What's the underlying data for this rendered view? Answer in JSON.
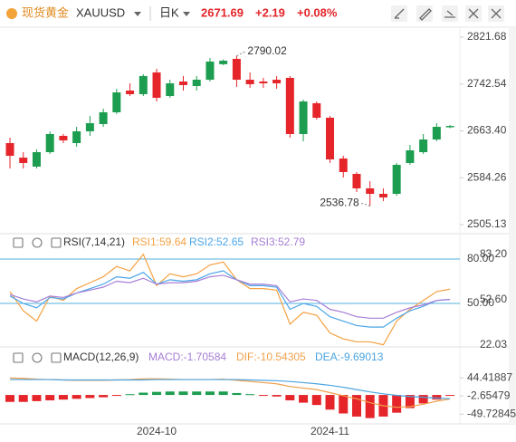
{
  "header": {
    "logo_name": "现货黄金",
    "symbol": "XAUUSD",
    "period": "日K",
    "price": "2671.69",
    "change": "+2.19",
    "change_pct": "+0.08%"
  },
  "chart_data": [
    {
      "type": "candlestick",
      "categories": [
        null,
        null,
        null,
        null,
        null,
        null,
        null,
        null,
        null,
        null,
        null,
        "2024-10",
        null,
        null,
        null,
        null,
        null,
        null,
        null,
        null,
        null,
        null,
        null,
        null,
        "2024-11",
        null,
        null,
        null,
        null,
        null,
        null,
        null,
        null,
        null
      ],
      "open": [
        2642.8,
        2618.3,
        2603.1,
        2627.5,
        2655.0,
        2642.8,
        2662.7,
        2674.9,
        2694.8,
        2731.5,
        2725.4,
        2762.1,
        2722.3,
        2746.8,
        2739.1,
        2749.8,
        2776.0,
        2785.0,
        2749.8,
        2746.8,
        2749.8,
        2752.9,
        2658.1,
        2710.1,
        2685.6,
        2616.8,
        2590.8,
        2566.4,
        2557.2,
        2557.2,
        2609.2,
        2627.5,
        2648.9,
        2669.5
      ],
      "high": [
        2652.0,
        2627.5,
        2632.1,
        2662.7,
        2658.1,
        2670.3,
        2688.7,
        2700.9,
        2734.5,
        2743.7,
        2759.0,
        2768.2,
        2749.8,
        2756.0,
        2756.0,
        2786.5,
        2784.0,
        2790.02,
        2762.1,
        2752.9,
        2756.0,
        2756.0,
        2716.2,
        2713.1,
        2688.7,
        2621.4,
        2593.9,
        2578.6,
        2566.4,
        2609.2,
        2639.7,
        2658.1,
        2676.4,
        2673.4
      ],
      "low": [
        2600.0,
        2600.0,
        2600.0,
        2624.5,
        2642.8,
        2636.7,
        2655.0,
        2670.3,
        2691.7,
        2722.3,
        2722.3,
        2713.1,
        2719.3,
        2731.5,
        2731.5,
        2746.8,
        2774.5,
        2737.6,
        2736.1,
        2736.1,
        2734.5,
        2652.0,
        2645.9,
        2682.6,
        2609.2,
        2584.7,
        2560.2,
        2536.78,
        2545.0,
        2554.1,
        2606.1,
        2624.5,
        2645.9,
        2668.0
      ],
      "close": [
        2621.4,
        2609.2,
        2627.5,
        2658.1,
        2647.4,
        2662.7,
        2676.4,
        2694.8,
        2728.4,
        2725.4,
        2756.0,
        2719.3,
        2743.7,
        2740.7,
        2749.8,
        2780.4,
        2781.9,
        2749.8,
        2742.2,
        2743.7,
        2743.7,
        2658.1,
        2713.1,
        2685.6,
        2615.3,
        2593.9,
        2566.4,
        2557.2,
        2551.1,
        2606.1,
        2630.6,
        2648.9,
        2670.3,
        2671.69
      ],
      "up_color": "#1c9d4f",
      "down_color": "#e5252a",
      "ylim": [
        2489.9,
        2838.5
      ],
      "yticks": [
        2821.68,
        2742.54,
        {
          "value": 2663.4,
          "label": "2663.40"
        },
        2584.26,
        2505.13
      ]
    },
    {
      "type": "line",
      "title": "RSI(7,14,21)",
      "series": [
        {
          "name": "RSI1:59.64",
          "color": "#f5a142",
          "values": [
            58,
            45,
            38,
            55,
            52,
            60,
            64,
            68,
            75,
            72,
            83.2,
            62,
            70,
            68,
            70,
            76,
            78,
            66,
            60,
            60,
            59,
            36,
            44,
            42,
            30,
            26,
            24,
            24,
            22.03,
            38,
            46,
            52,
            58,
            59.64
          ]
        },
        {
          "name": "RSI2:52.65",
          "color": "#4aa6e8",
          "values": [
            55,
            50,
            47,
            54,
            53,
            57,
            60,
            63,
            68,
            67,
            71,
            63,
            66,
            65,
            66,
            70,
            72,
            66,
            62,
            62,
            61,
            46,
            50,
            48,
            41,
            38,
            35,
            34,
            34,
            40,
            45,
            48,
            52,
            52.65
          ]
        },
        {
          "name": "RSI3:52.79",
          "color": "#a77ed6",
          "values": [
            56,
            53,
            51,
            55,
            54,
            57,
            59,
            61,
            65,
            64,
            67,
            63,
            64,
            64,
            65,
            68,
            69,
            66,
            63,
            63,
            62,
            51,
            53,
            52,
            46,
            44,
            41,
            40,
            40,
            44,
            47,
            49,
            52,
            52.79
          ]
        }
      ],
      "ylim": [
        21.2,
        84.9
      ],
      "yticks": [
        {
          "value": 80,
          "label": "80.00"
        },
        {
          "value": 50,
          "label": "50.00"
        }
      ],
      "grid": true,
      "grid_color": "#4fb0de",
      "markers": [
        {
          "value": 83.2,
          "label": "83.20"
        },
        {
          "value": 52.6,
          "label": "52.60"
        },
        {
          "value": 22.03,
          "label": "22.03"
        }
      ]
    },
    {
      "type": "macd",
      "title": "MACD(12,26,9)",
      "series": [
        {
          "name": "MACD:-1.70584",
          "kind": "bar",
          "color": "#a77ed6",
          "up_color": "#1c9d4f",
          "down_color": "#e5252a",
          "values": [
            -18,
            -18,
            -16,
            -14,
            -12,
            -10,
            -8,
            -6,
            -2,
            2,
            6,
            8,
            9,
            9,
            9,
            9,
            9,
            5,
            2,
            -2,
            -4,
            -14,
            -20,
            -26,
            -38,
            -48,
            -56,
            -60,
            -56,
            -46,
            -34,
            -22,
            -12,
            -1.70584
          ]
        },
        {
          "name": "DIF:-10.54305",
          "kind": "line",
          "color": "#f0a04b",
          "values": [
            44,
            43,
            41,
            40,
            39,
            38,
            38,
            38,
            39,
            40,
            42,
            42,
            41,
            40,
            40,
            40,
            41,
            38,
            35,
            32,
            29,
            22,
            18,
            14,
            6,
            -2,
            -10,
            -20,
            -28,
            -32,
            -30,
            -24,
            -16,
            -10.54305
          ]
        },
        {
          "name": "DEA:-9.69013",
          "kind": "line",
          "color": "#4ba3e0",
          "values": [
            40,
            40,
            40,
            40,
            39,
            39,
            39,
            39,
            39,
            39,
            39,
            40,
            40,
            40,
            40,
            40,
            40,
            40,
            39,
            38,
            37,
            35,
            32,
            29,
            25,
            20,
            14,
            8,
            3,
            -1,
            -4,
            -6,
            -8,
            -9.69013
          ]
        }
      ],
      "ylim": [
        -75,
        73
      ],
      "yticks": [
        44.41887,
        -2.65479,
        -49.72845
      ]
    }
  ]
}
